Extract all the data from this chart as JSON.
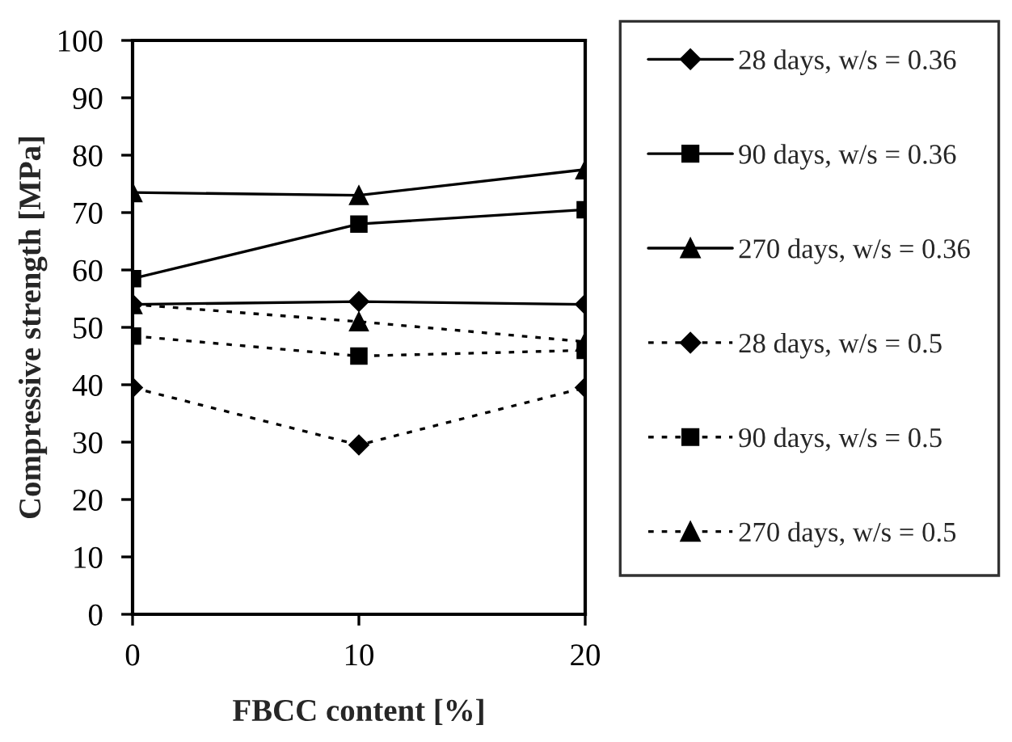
{
  "chart_data": {
    "type": "line",
    "xlabel": "FBCC content [%]",
    "ylabel": "Compressive strength [MPa]",
    "x": [
      0,
      10,
      20
    ],
    "xlim": [
      0,
      20
    ],
    "xticks": [
      0,
      10,
      20
    ],
    "ylim": [
      0,
      100
    ],
    "yticks": [
      0,
      10,
      20,
      30,
      40,
      50,
      60,
      70,
      80,
      90,
      100
    ],
    "grid": false,
    "legend": "right",
    "series": [
      {
        "name": "28 days, w/s = 0.36",
        "color": "#000000",
        "marker": "diamond",
        "line_style": "solid",
        "values": [
          54,
          54.5,
          54
        ]
      },
      {
        "name": "90 days, w/s = 0.36",
        "color": "#000000",
        "marker": "square",
        "line_style": "solid",
        "values": [
          58.5,
          68,
          70.5
        ]
      },
      {
        "name": "270 days, w/s = 0.36",
        "color": "#000000",
        "marker": "triangle",
        "line_style": "solid",
        "values": [
          73.5,
          73,
          77.5
        ]
      },
      {
        "name": "28 days, w/s = 0.5",
        "color": "#000000",
        "marker": "diamond",
        "line_style": "dotted",
        "values": [
          39.5,
          29.5,
          39.5
        ]
      },
      {
        "name": "90 days, w/s = 0.5",
        "color": "#000000",
        "marker": "square",
        "line_style": "dotted",
        "values": [
          48.5,
          45,
          46
        ]
      },
      {
        "name": "270 days, w/s = 0.5",
        "color": "#000000",
        "marker": "triangle",
        "line_style": "dotted",
        "values": [
          54,
          51,
          47.5
        ]
      }
    ]
  }
}
